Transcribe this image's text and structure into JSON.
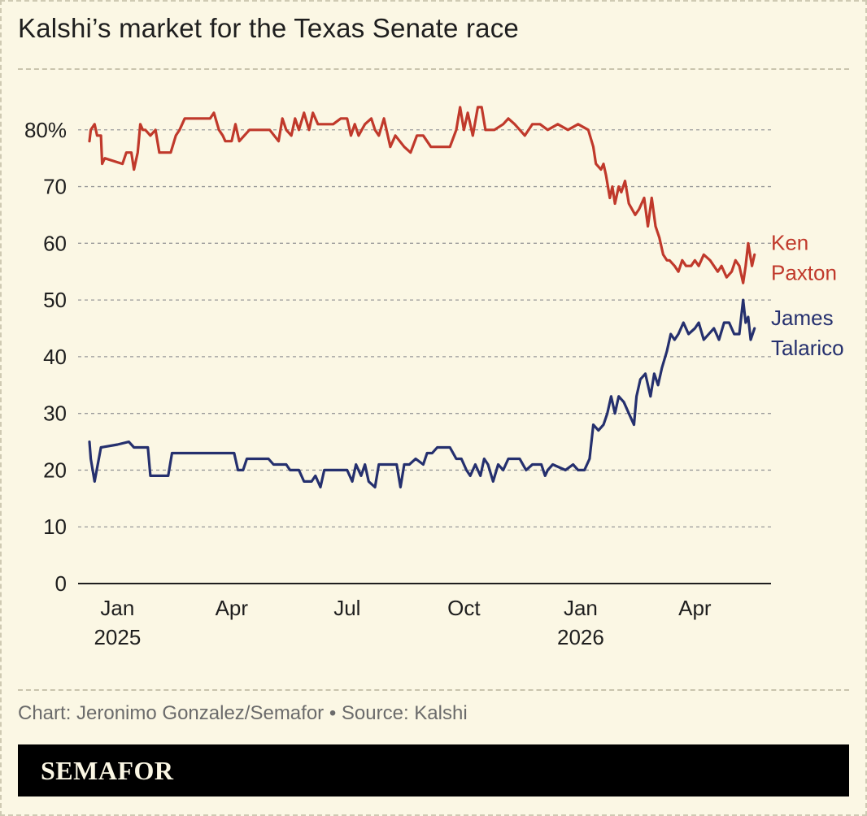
{
  "title": "Kalshi’s market for the Texas Senate race",
  "credit": "Chart: Jeronimo Gonzalez/Semafor • Source: Kalshi",
  "brand": "SEMAFOR",
  "colors": {
    "background": "#fbf7e4",
    "paxton": "#c0392b",
    "talarico": "#25306e",
    "grid": "#9a9a9a",
    "axis": "#1e1e1e"
  },
  "chart_data": {
    "type": "line",
    "xlim": [
      "2024-12-01",
      "2026-05-31"
    ],
    "ylim": [
      0,
      90
    ],
    "yticks": [
      0,
      10,
      20,
      30,
      40,
      50,
      60,
      70,
      80
    ],
    "ytick_labels": [
      "0",
      "10",
      "20",
      "30",
      "40",
      "50",
      "60",
      "70",
      "80%"
    ],
    "xticks": [
      {
        "date": "2025-01-01",
        "label": "Jan",
        "year": "2025"
      },
      {
        "date": "2025-04-01",
        "label": "Apr",
        "year": ""
      },
      {
        "date": "2025-07-01",
        "label": "Jul",
        "year": ""
      },
      {
        "date": "2025-10-01",
        "label": "Oct",
        "year": ""
      },
      {
        "date": "2026-01-01",
        "label": "Jan",
        "year": "2026"
      },
      {
        "date": "2026-04-01",
        "label": "Apr",
        "year": ""
      }
    ],
    "grid": true,
    "series": [
      {
        "name": "Ken Paxton",
        "label_lines": [
          "Ken",
          "Paxton"
        ],
        "color": "#c0392b",
        "points": [
          [
            "2024-12-10",
            78
          ],
          [
            "2024-12-11",
            80
          ],
          [
            "2024-12-14",
            81
          ],
          [
            "2024-12-16",
            79
          ],
          [
            "2024-12-19",
            79
          ],
          [
            "2024-12-20",
            74
          ],
          [
            "2024-12-22",
            75
          ],
          [
            "2025-01-05",
            74
          ],
          [
            "2025-01-08",
            76
          ],
          [
            "2025-01-12",
            76
          ],
          [
            "2025-01-14",
            73
          ],
          [
            "2025-01-17",
            76
          ],
          [
            "2025-01-19",
            81
          ],
          [
            "2025-01-21",
            80
          ],
          [
            "2025-01-23",
            80
          ],
          [
            "2025-01-27",
            79
          ],
          [
            "2025-01-31",
            80
          ],
          [
            "2025-02-03",
            76
          ],
          [
            "2025-02-12",
            76
          ],
          [
            "2025-02-16",
            79
          ],
          [
            "2025-02-19",
            80
          ],
          [
            "2025-02-23",
            82
          ],
          [
            "2025-03-15",
            82
          ],
          [
            "2025-03-18",
            83
          ],
          [
            "2025-03-22",
            80
          ],
          [
            "2025-03-25",
            79
          ],
          [
            "2025-03-27",
            78
          ],
          [
            "2025-04-01",
            78
          ],
          [
            "2025-04-04",
            81
          ],
          [
            "2025-04-07",
            78
          ],
          [
            "2025-04-15",
            80
          ],
          [
            "2025-05-01",
            80
          ],
          [
            "2025-05-08",
            78
          ],
          [
            "2025-05-11",
            82
          ],
          [
            "2025-05-14",
            80
          ],
          [
            "2025-05-18",
            79
          ],
          [
            "2025-05-21",
            82
          ],
          [
            "2025-05-24",
            80
          ],
          [
            "2025-05-28",
            83
          ],
          [
            "2025-06-01",
            80
          ],
          [
            "2025-06-04",
            83
          ],
          [
            "2025-06-08",
            81
          ],
          [
            "2025-06-20",
            81
          ],
          [
            "2025-06-26",
            82
          ],
          [
            "2025-07-01",
            82
          ],
          [
            "2025-07-04",
            79
          ],
          [
            "2025-07-07",
            81
          ],
          [
            "2025-07-10",
            79
          ],
          [
            "2025-07-15",
            81
          ],
          [
            "2025-07-20",
            82
          ],
          [
            "2025-07-23",
            80
          ],
          [
            "2025-07-26",
            79
          ],
          [
            "2025-07-30",
            82
          ],
          [
            "2025-08-04",
            77
          ],
          [
            "2025-08-08",
            79
          ],
          [
            "2025-08-15",
            77
          ],
          [
            "2025-08-20",
            76
          ],
          [
            "2025-08-25",
            79
          ],
          [
            "2025-08-30",
            79
          ],
          [
            "2025-09-05",
            77
          ],
          [
            "2025-09-12",
            77
          ],
          [
            "2025-09-20",
            77
          ],
          [
            "2025-09-25",
            80
          ],
          [
            "2025-09-28",
            84
          ],
          [
            "2025-10-01",
            80
          ],
          [
            "2025-10-04",
            83
          ],
          [
            "2025-10-08",
            79
          ],
          [
            "2025-10-12",
            84
          ],
          [
            "2025-10-15",
            84
          ],
          [
            "2025-10-18",
            80
          ],
          [
            "2025-10-25",
            80
          ],
          [
            "2025-11-01",
            81
          ],
          [
            "2025-11-05",
            82
          ],
          [
            "2025-11-10",
            81
          ],
          [
            "2025-11-18",
            79
          ],
          [
            "2025-11-24",
            81
          ],
          [
            "2025-11-30",
            81
          ],
          [
            "2025-12-06",
            80
          ],
          [
            "2025-12-14",
            81
          ],
          [
            "2025-12-22",
            80
          ],
          [
            "2025-12-30",
            81
          ],
          [
            "2026-01-07",
            80
          ],
          [
            "2026-01-11",
            77
          ],
          [
            "2026-01-13",
            74
          ],
          [
            "2026-01-17",
            73
          ],
          [
            "2026-01-19",
            74
          ],
          [
            "2026-01-21",
            72
          ],
          [
            "2026-01-24",
            68
          ],
          [
            "2026-01-26",
            70
          ],
          [
            "2026-01-28",
            67
          ],
          [
            "2026-01-31",
            70
          ],
          [
            "2026-02-02",
            69
          ],
          [
            "2026-02-05",
            71
          ],
          [
            "2026-02-08",
            67
          ],
          [
            "2026-02-13",
            65
          ],
          [
            "2026-02-16",
            66
          ],
          [
            "2026-02-20",
            68
          ],
          [
            "2026-02-23",
            63
          ],
          [
            "2026-02-26",
            68
          ],
          [
            "2026-03-01",
            63
          ],
          [
            "2026-03-04",
            61
          ],
          [
            "2026-03-07",
            58
          ],
          [
            "2026-03-10",
            57
          ],
          [
            "2026-03-12",
            57
          ],
          [
            "2026-03-16",
            56
          ],
          [
            "2026-03-19",
            55
          ],
          [
            "2026-03-22",
            57
          ],
          [
            "2026-03-25",
            56
          ],
          [
            "2026-03-29",
            56
          ],
          [
            "2026-04-01",
            57
          ],
          [
            "2026-04-04",
            56
          ],
          [
            "2026-04-08",
            58
          ],
          [
            "2026-04-13",
            57
          ],
          [
            "2026-04-19",
            55
          ],
          [
            "2026-04-22",
            56
          ],
          [
            "2026-04-26",
            54
          ],
          [
            "2026-04-30",
            55
          ],
          [
            "2026-05-03",
            57
          ],
          [
            "2026-05-06",
            56
          ],
          [
            "2026-05-09",
            53
          ],
          [
            "2026-05-11",
            56
          ],
          [
            "2026-05-13",
            60
          ],
          [
            "2026-05-16",
            56
          ],
          [
            "2026-05-18",
            58
          ]
        ]
      },
      {
        "name": "James Talarico",
        "label_lines": [
          "James",
          "Talarico"
        ],
        "color": "#25306e",
        "points": [
          [
            "2024-12-10",
            25
          ],
          [
            "2024-12-11",
            22
          ],
          [
            "2024-12-14",
            18
          ],
          [
            "2024-12-19",
            24
          ],
          [
            "2025-01-01",
            24.5
          ],
          [
            "2025-01-10",
            25
          ],
          [
            "2025-01-14",
            24
          ],
          [
            "2025-01-25",
            24
          ],
          [
            "2025-01-27",
            19
          ],
          [
            "2025-02-10",
            19
          ],
          [
            "2025-02-13",
            23
          ],
          [
            "2025-03-20",
            23
          ],
          [
            "2025-04-03",
            23
          ],
          [
            "2025-04-06",
            20
          ],
          [
            "2025-04-10",
            20
          ],
          [
            "2025-04-13",
            22
          ],
          [
            "2025-04-30",
            22
          ],
          [
            "2025-05-04",
            21
          ],
          [
            "2025-05-14",
            21
          ],
          [
            "2025-05-17",
            20
          ],
          [
            "2025-05-24",
            20
          ],
          [
            "2025-05-28",
            18
          ],
          [
            "2025-06-03",
            18
          ],
          [
            "2025-06-06",
            19
          ],
          [
            "2025-06-10",
            17
          ],
          [
            "2025-06-13",
            20
          ],
          [
            "2025-07-01",
            20
          ],
          [
            "2025-07-05",
            18
          ],
          [
            "2025-07-08",
            21
          ],
          [
            "2025-07-12",
            19
          ],
          [
            "2025-07-15",
            21
          ],
          [
            "2025-07-18",
            18
          ],
          [
            "2025-07-23",
            17
          ],
          [
            "2025-07-26",
            21
          ],
          [
            "2025-08-02",
            21
          ],
          [
            "2025-08-09",
            21
          ],
          [
            "2025-08-12",
            17
          ],
          [
            "2025-08-15",
            21
          ],
          [
            "2025-08-19",
            21
          ],
          [
            "2025-08-24",
            22
          ],
          [
            "2025-08-30",
            21
          ],
          [
            "2025-09-02",
            23
          ],
          [
            "2025-09-06",
            23
          ],
          [
            "2025-09-10",
            24
          ],
          [
            "2025-09-20",
            24
          ],
          [
            "2025-09-25",
            22
          ],
          [
            "2025-09-29",
            22
          ],
          [
            "2025-10-03",
            20
          ],
          [
            "2025-10-06",
            19
          ],
          [
            "2025-10-10",
            21
          ],
          [
            "2025-10-14",
            19
          ],
          [
            "2025-10-17",
            22
          ],
          [
            "2025-10-20",
            21
          ],
          [
            "2025-10-24",
            18
          ],
          [
            "2025-10-28",
            21
          ],
          [
            "2025-11-01",
            20
          ],
          [
            "2025-11-05",
            22
          ],
          [
            "2025-11-14",
            22
          ],
          [
            "2025-11-19",
            20
          ],
          [
            "2025-11-24",
            21
          ],
          [
            "2025-12-01",
            21
          ],
          [
            "2025-12-04",
            19
          ],
          [
            "2025-12-06",
            20
          ],
          [
            "2025-12-10",
            21
          ],
          [
            "2025-12-20",
            20
          ],
          [
            "2025-12-26",
            21
          ],
          [
            "2025-12-30",
            20
          ],
          [
            "2026-01-04",
            20
          ],
          [
            "2026-01-08",
            22
          ],
          [
            "2026-01-11",
            28
          ],
          [
            "2026-01-15",
            27
          ],
          [
            "2026-01-19",
            28
          ],
          [
            "2026-01-22",
            30
          ],
          [
            "2026-01-25",
            33
          ],
          [
            "2026-01-28",
            30
          ],
          [
            "2026-01-31",
            33
          ],
          [
            "2026-02-04",
            32
          ],
          [
            "2026-02-08",
            30
          ],
          [
            "2026-02-12",
            28
          ],
          [
            "2026-02-14",
            33
          ],
          [
            "2026-02-17",
            36
          ],
          [
            "2026-02-21",
            37
          ],
          [
            "2026-02-25",
            33
          ],
          [
            "2026-02-28",
            37
          ],
          [
            "2026-03-03",
            35
          ],
          [
            "2026-03-06",
            38
          ],
          [
            "2026-03-10",
            41
          ],
          [
            "2026-03-13",
            44
          ],
          [
            "2026-03-16",
            43
          ],
          [
            "2026-03-19",
            44
          ],
          [
            "2026-03-23",
            46
          ],
          [
            "2026-03-27",
            44
          ],
          [
            "2026-04-01",
            45
          ],
          [
            "2026-04-04",
            46
          ],
          [
            "2026-04-08",
            43
          ],
          [
            "2026-04-12",
            44
          ],
          [
            "2026-04-16",
            45
          ],
          [
            "2026-04-20",
            43
          ],
          [
            "2026-04-24",
            46
          ],
          [
            "2026-04-28",
            46
          ],
          [
            "2026-05-02",
            44
          ],
          [
            "2026-05-06",
            44
          ],
          [
            "2026-05-09",
            50
          ],
          [
            "2026-05-11",
            46
          ],
          [
            "2026-05-13",
            47
          ],
          [
            "2026-05-15",
            43
          ],
          [
            "2026-05-18",
            45
          ]
        ]
      }
    ]
  }
}
